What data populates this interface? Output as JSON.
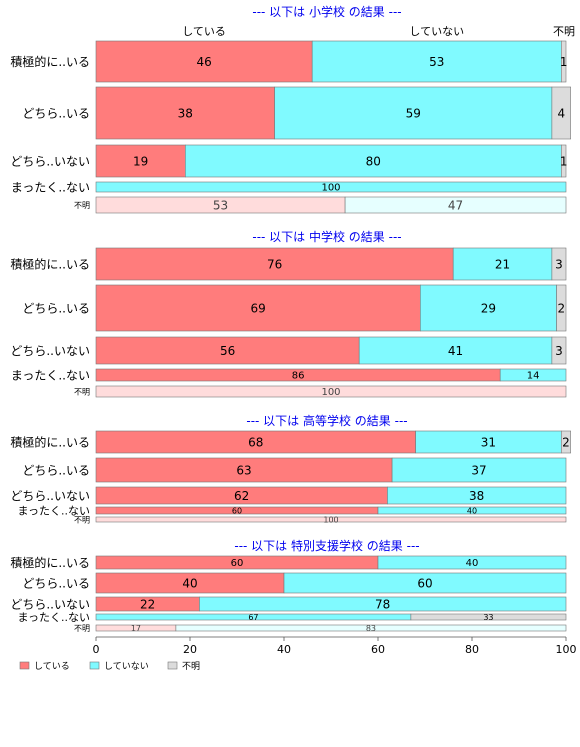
{
  "chart_data": {
    "type": "bar",
    "orientation": "horizontal",
    "stacked": true,
    "xlim": [
      0,
      100
    ],
    "x_ticks": [
      "0",
      "20",
      "40",
      "60",
      "80",
      "100"
    ],
    "legend": {
      "placement": "bottom-left",
      "entries": [
        {
          "name": "している",
          "color": "#FF7C7C"
        },
        {
          "name": "していない",
          "color": "#80FAFF"
        },
        {
          "name": "不明",
          "color": "#DCDCDC"
        }
      ]
    },
    "top_header_labels": [
      "している",
      "していない",
      "不明"
    ],
    "colors": {
      "している": "#FF7C7C",
      "していない": "#80FAFF",
      "不明": "#DCDCDC",
      "している_light": "#FFDCDC",
      "していない_light": "#E6FFFF",
      "title": "#0000EE"
    },
    "panels": [
      {
        "title": "--- 以下は 小学校 の結果 ---",
        "rows": [
          {
            "label": "積極的に..いる",
            "values": [
              46,
              53,
              1
            ],
            "shown": [
              "46",
              "53",
              "1"
            ]
          },
          {
            "label": "どちら..いる",
            "values": [
              38,
              59,
              4
            ],
            "shown": [
              "38",
              "59",
              "4"
            ]
          },
          {
            "label": "どちら..いない",
            "values": [
              19,
              80,
              1
            ],
            "shown": [
              "19",
              "80",
              "1"
            ]
          },
          {
            "label": "まったく..ない",
            "values": [
              0,
              100,
              0
            ],
            "shown": [
              "",
              "100",
              ""
            ]
          },
          {
            "label": "不明",
            "values": [
              53,
              47,
              0
            ],
            "shown": [
              "53",
              "47",
              ""
            ],
            "light": true
          }
        ]
      },
      {
        "title": "--- 以下は 中学校 の結果 ---",
        "rows": [
          {
            "label": "積極的に..いる",
            "values": [
              76,
              21,
              3
            ],
            "shown": [
              "76",
              "21",
              "3"
            ]
          },
          {
            "label": "どちら..いる",
            "values": [
              69,
              29,
              2
            ],
            "shown": [
              "69",
              "29",
              "2"
            ]
          },
          {
            "label": "どちら..いない",
            "values": [
              56,
              41,
              3
            ],
            "shown": [
              "56",
              "41",
              "3"
            ]
          },
          {
            "label": "まったく..ない",
            "values": [
              86,
              14,
              0
            ],
            "shown": [
              "86",
              "14",
              ""
            ]
          },
          {
            "label": "不明",
            "values": [
              100,
              0,
              0
            ],
            "shown": [
              "100",
              "",
              ""
            ],
            "light": true
          }
        ]
      },
      {
        "title": "--- 以下は 高等学校 の結果 ---",
        "rows": [
          {
            "label": "積極的に..いる",
            "values": [
              68,
              31,
              2
            ],
            "shown": [
              "68",
              "31",
              "2"
            ]
          },
          {
            "label": "どちら..いる",
            "values": [
              63,
              37,
              0
            ],
            "shown": [
              "63",
              "37",
              ""
            ]
          },
          {
            "label": "どちら..いない",
            "values": [
              62,
              38,
              0
            ],
            "shown": [
              "62",
              "38",
              ""
            ]
          },
          {
            "label": "まったく..ない",
            "values": [
              60,
              40,
              0
            ],
            "shown": [
              "60",
              "40",
              ""
            ]
          },
          {
            "label": "不明",
            "values": [
              100,
              0,
              0
            ],
            "shown": [
              "100",
              "",
              ""
            ],
            "light": true
          }
        ]
      },
      {
        "title": "--- 以下は 特別支援学校 の結果 ---",
        "rows": [
          {
            "label": "積極的に..いる",
            "values": [
              60,
              40,
              0
            ],
            "shown": [
              "60",
              "40",
              ""
            ]
          },
          {
            "label": "どちら..いる",
            "values": [
              40,
              60,
              0
            ],
            "shown": [
              "40",
              "60",
              ""
            ]
          },
          {
            "label": "どちら..いない",
            "values": [
              22,
              78,
              0
            ],
            "shown": [
              "22",
              "78",
              ""
            ]
          },
          {
            "label": "まったく..ない",
            "values": [
              0,
              67,
              33
            ],
            "shown": [
              "",
              "67",
              "33"
            ]
          },
          {
            "label": "不明",
            "values": [
              17,
              83,
              0
            ],
            "shown": [
              "17",
              "83",
              ""
            ],
            "light": true
          }
        ]
      }
    ]
  }
}
